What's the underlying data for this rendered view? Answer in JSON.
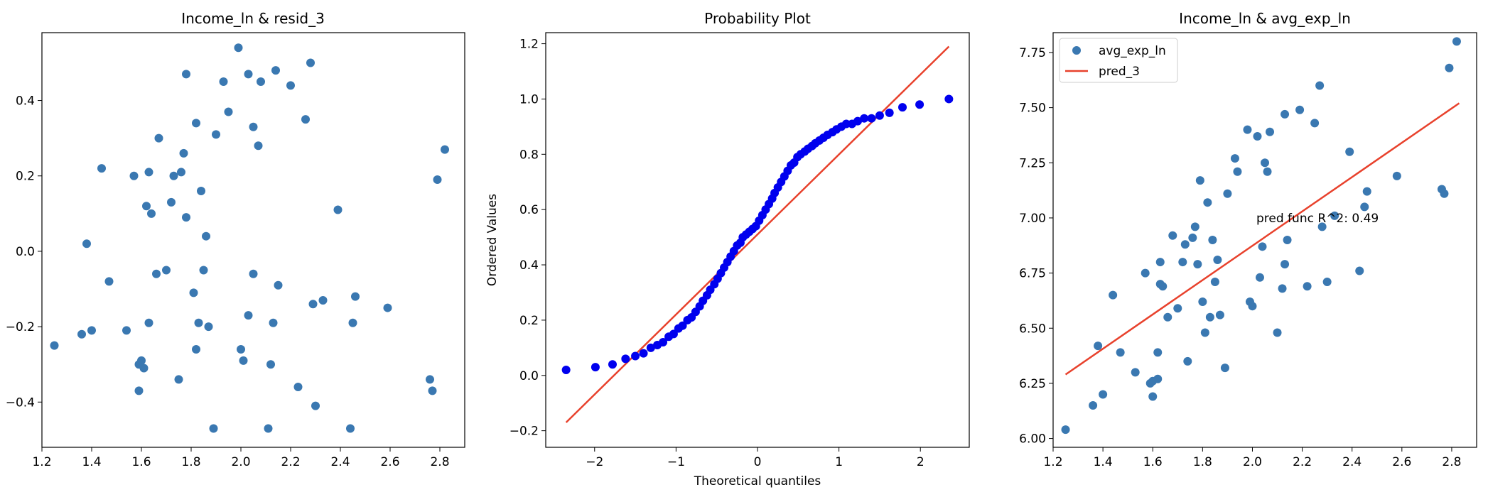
{
  "chart_data": [
    {
      "type": "scatter",
      "title": "Income_ln & resid_3",
      "xlabel": "",
      "ylabel": "",
      "xlim": [
        1.2,
        2.9
      ],
      "ylim": [
        -0.52,
        0.58
      ],
      "xticks": [
        1.2,
        1.4,
        1.6,
        1.8,
        2.0,
        2.2,
        2.4,
        2.6,
        2.8
      ],
      "xtick_labels": [
        "1.2",
        "1.4",
        "1.6",
        "1.8",
        "2.0",
        "2.2",
        "2.4",
        "2.6",
        "2.8"
      ],
      "yticks": [
        -0.4,
        -0.2,
        0.0,
        0.2,
        0.4
      ],
      "ytick_labels": [
        "−0.4",
        "−0.2",
        "0.0",
        "0.2",
        "0.4"
      ],
      "color": "#3a78b1",
      "points": [
        [
          1.25,
          -0.25
        ],
        [
          1.36,
          -0.22
        ],
        [
          1.38,
          0.02
        ],
        [
          1.4,
          -0.21
        ],
        [
          1.44,
          0.22
        ],
        [
          1.47,
          -0.08
        ],
        [
          1.54,
          -0.21
        ],
        [
          1.57,
          0.2
        ],
        [
          1.59,
          -0.3
        ],
        [
          1.6,
          -0.29
        ],
        [
          1.59,
          -0.37
        ],
        [
          1.61,
          -0.31
        ],
        [
          1.62,
          0.12
        ],
        [
          1.63,
          -0.19
        ],
        [
          1.63,
          0.21
        ],
        [
          1.64,
          0.1
        ],
        [
          1.66,
          -0.06
        ],
        [
          1.67,
          0.3
        ],
        [
          1.7,
          -0.05
        ],
        [
          1.72,
          0.13
        ],
        [
          1.73,
          0.2
        ],
        [
          1.75,
          -0.34
        ],
        [
          1.76,
          0.21
        ],
        [
          1.77,
          0.26
        ],
        [
          1.78,
          0.09
        ],
        [
          1.78,
          0.47
        ],
        [
          1.81,
          -0.11
        ],
        [
          1.82,
          0.34
        ],
        [
          1.82,
          -0.26
        ],
        [
          1.83,
          -0.19
        ],
        [
          1.84,
          0.16
        ],
        [
          1.85,
          -0.05
        ],
        [
          1.86,
          0.04
        ],
        [
          1.87,
          -0.2
        ],
        [
          1.89,
          -0.47
        ],
        [
          1.9,
          0.31
        ],
        [
          1.93,
          0.45
        ],
        [
          1.95,
          0.37
        ],
        [
          1.99,
          0.54
        ],
        [
          2.0,
          -0.26
        ],
        [
          2.01,
          -0.29
        ],
        [
          2.03,
          0.47
        ],
        [
          2.03,
          -0.17
        ],
        [
          2.05,
          -0.06
        ],
        [
          2.05,
          0.33
        ],
        [
          2.07,
          0.28
        ],
        [
          2.08,
          0.45
        ],
        [
          2.11,
          -0.47
        ],
        [
          2.12,
          -0.3
        ],
        [
          2.13,
          -0.19
        ],
        [
          2.14,
          0.48
        ],
        [
          2.15,
          -0.09
        ],
        [
          2.2,
          0.44
        ],
        [
          2.23,
          -0.36
        ],
        [
          2.26,
          0.35
        ],
        [
          2.28,
          0.5
        ],
        [
          2.29,
          -0.14
        ],
        [
          2.3,
          -0.41
        ],
        [
          2.33,
          -0.13
        ],
        [
          2.39,
          0.11
        ],
        [
          2.44,
          -0.47
        ],
        [
          2.45,
          -0.19
        ],
        [
          2.46,
          -0.12
        ],
        [
          2.59,
          -0.15
        ],
        [
          2.76,
          -0.34
        ],
        [
          2.77,
          -0.37
        ],
        [
          2.79,
          0.19
        ],
        [
          2.82,
          0.27
        ]
      ]
    },
    {
      "type": "scatter",
      "title": "Probability Plot",
      "xlabel": "Theoretical quantiles",
      "ylabel": "Ordered Values",
      "xlim": [
        -2.6,
        2.6
      ],
      "ylim": [
        -0.26,
        1.24
      ],
      "xticks": [
        -2,
        -1,
        0,
        1,
        2
      ],
      "xtick_labels": [
        "−2",
        "−1",
        "0",
        "1",
        "2"
      ],
      "yticks": [
        -0.2,
        0.0,
        0.2,
        0.4,
        0.6,
        0.8,
        1.0,
        1.2
      ],
      "ytick_labels": [
        "−0.2",
        "0.0",
        "0.2",
        "0.4",
        "0.6",
        "0.8",
        "1.0",
        "1.2"
      ],
      "point_color": "#0000ee",
      "line_color": "#e8412c",
      "fit_line": {
        "x": [
          -2.35,
          2.35
        ],
        "y": [
          -0.17,
          1.19
        ]
      },
      "points": [
        [
          -2.35,
          0.02
        ],
        [
          -1.99,
          0.03
        ],
        [
          -1.78,
          0.04
        ],
        [
          -1.62,
          0.06
        ],
        [
          -1.5,
          0.07
        ],
        [
          -1.4,
          0.08
        ],
        [
          -1.31,
          0.1
        ],
        [
          -1.23,
          0.11
        ],
        [
          -1.16,
          0.12
        ],
        [
          -1.09,
          0.14
        ],
        [
          -1.03,
          0.15
        ],
        [
          -0.97,
          0.17
        ],
        [
          -0.92,
          0.18
        ],
        [
          -0.86,
          0.2
        ],
        [
          -0.81,
          0.21
        ],
        [
          -0.76,
          0.23
        ],
        [
          -0.71,
          0.25
        ],
        [
          -0.67,
          0.27
        ],
        [
          -0.62,
          0.29
        ],
        [
          -0.58,
          0.31
        ],
        [
          -0.53,
          0.33
        ],
        [
          -0.49,
          0.35
        ],
        [
          -0.45,
          0.37
        ],
        [
          -0.41,
          0.39
        ],
        [
          -0.37,
          0.41
        ],
        [
          -0.33,
          0.43
        ],
        [
          -0.29,
          0.45
        ],
        [
          -0.25,
          0.47
        ],
        [
          -0.21,
          0.48
        ],
        [
          -0.18,
          0.5
        ],
        [
          -0.14,
          0.51
        ],
        [
          -0.1,
          0.52
        ],
        [
          -0.06,
          0.53
        ],
        [
          -0.02,
          0.54
        ],
        [
          0.02,
          0.56
        ],
        [
          0.06,
          0.58
        ],
        [
          0.1,
          0.6
        ],
        [
          0.14,
          0.62
        ],
        [
          0.18,
          0.64
        ],
        [
          0.21,
          0.66
        ],
        [
          0.25,
          0.68
        ],
        [
          0.29,
          0.7
        ],
        [
          0.33,
          0.72
        ],
        [
          0.37,
          0.74
        ],
        [
          0.41,
          0.76
        ],
        [
          0.45,
          0.77
        ],
        [
          0.49,
          0.79
        ],
        [
          0.53,
          0.8
        ],
        [
          0.58,
          0.81
        ],
        [
          0.62,
          0.82
        ],
        [
          0.67,
          0.83
        ],
        [
          0.71,
          0.84
        ],
        [
          0.76,
          0.85
        ],
        [
          0.81,
          0.86
        ],
        [
          0.86,
          0.87
        ],
        [
          0.92,
          0.88
        ],
        [
          0.97,
          0.89
        ],
        [
          1.03,
          0.9
        ],
        [
          1.09,
          0.91
        ],
        [
          1.16,
          0.91
        ],
        [
          1.23,
          0.92
        ],
        [
          1.31,
          0.93
        ],
        [
          1.4,
          0.93
        ],
        [
          1.5,
          0.94
        ],
        [
          1.62,
          0.95
        ],
        [
          1.78,
          0.97
        ],
        [
          1.99,
          0.98
        ],
        [
          2.35,
          1.0
        ]
      ]
    },
    {
      "type": "scatter",
      "title": "Income_ln & avg_exp_ln",
      "xlabel": "",
      "ylabel": "",
      "xlim": [
        1.2,
        2.9
      ],
      "ylim": [
        5.96,
        7.84
      ],
      "xticks": [
        1.2,
        1.4,
        1.6,
        1.8,
        2.0,
        2.2,
        2.4,
        2.6,
        2.8
      ],
      "xtick_labels": [
        "1.2",
        "1.4",
        "1.6",
        "1.8",
        "2.0",
        "2.2",
        "2.4",
        "2.6",
        "2.8"
      ],
      "yticks": [
        6.0,
        6.25,
        6.5,
        6.75,
        7.0,
        7.25,
        7.5,
        7.75
      ],
      "ytick_labels": [
        "6.00",
        "6.25",
        "6.50",
        "6.75",
        "7.00",
        "7.25",
        "7.50",
        "7.75"
      ],
      "point_color": "#3a78b1",
      "line_color": "#e8412c",
      "legend": [
        "avg_exp_ln",
        "pred_3"
      ],
      "legend_position": "top-left",
      "annotation": {
        "text": "pred func R^2: 0.49",
        "x": 2.0,
        "y": 7.0
      },
      "fit_line": {
        "x": [
          1.25,
          2.83
        ],
        "y": [
          6.29,
          7.52
        ]
      },
      "points": [
        [
          1.25,
          6.04
        ],
        [
          1.36,
          6.15
        ],
        [
          1.38,
          6.42
        ],
        [
          1.4,
          6.2
        ],
        [
          1.44,
          6.65
        ],
        [
          1.47,
          6.39
        ],
        [
          1.53,
          6.3
        ],
        [
          1.57,
          6.75
        ],
        [
          1.59,
          6.25
        ],
        [
          1.6,
          6.19
        ],
        [
          1.6,
          6.26
        ],
        [
          1.62,
          6.27
        ],
        [
          1.62,
          6.39
        ],
        [
          1.63,
          6.7
        ],
        [
          1.63,
          6.8
        ],
        [
          1.64,
          6.69
        ],
        [
          1.66,
          6.55
        ],
        [
          1.68,
          6.92
        ],
        [
          1.7,
          6.59
        ],
        [
          1.72,
          6.8
        ],
        [
          1.73,
          6.88
        ],
        [
          1.74,
          6.35
        ],
        [
          1.76,
          6.91
        ],
        [
          1.77,
          6.96
        ],
        [
          1.78,
          6.79
        ],
        [
          1.79,
          7.17
        ],
        [
          1.8,
          6.62
        ],
        [
          1.81,
          6.48
        ],
        [
          1.82,
          7.07
        ],
        [
          1.83,
          6.55
        ],
        [
          1.84,
          6.9
        ],
        [
          1.85,
          6.71
        ],
        [
          1.86,
          6.81
        ],
        [
          1.87,
          6.56
        ],
        [
          1.89,
          6.32
        ],
        [
          1.9,
          7.11
        ],
        [
          1.93,
          7.27
        ],
        [
          1.94,
          7.21
        ],
        [
          1.98,
          7.4
        ],
        [
          1.99,
          6.62
        ],
        [
          2.0,
          6.6
        ],
        [
          2.02,
          7.37
        ],
        [
          2.03,
          6.73
        ],
        [
          2.04,
          6.87
        ],
        [
          2.05,
          7.25
        ],
        [
          2.06,
          7.21
        ],
        [
          2.07,
          7.39
        ],
        [
          2.1,
          6.48
        ],
        [
          2.12,
          6.68
        ],
        [
          2.13,
          6.79
        ],
        [
          2.13,
          7.47
        ],
        [
          2.14,
          6.9
        ],
        [
          2.19,
          7.49
        ],
        [
          2.22,
          6.69
        ],
        [
          2.25,
          7.43
        ],
        [
          2.27,
          7.6
        ],
        [
          2.28,
          6.96
        ],
        [
          2.3,
          6.71
        ],
        [
          2.33,
          7.01
        ],
        [
          2.39,
          7.3
        ],
        [
          2.43,
          6.76
        ],
        [
          2.45,
          7.05
        ],
        [
          2.46,
          7.12
        ],
        [
          2.58,
          7.19
        ],
        [
          2.76,
          7.13
        ],
        [
          2.77,
          7.11
        ],
        [
          2.79,
          7.68
        ],
        [
          2.82,
          7.8
        ]
      ]
    }
  ]
}
